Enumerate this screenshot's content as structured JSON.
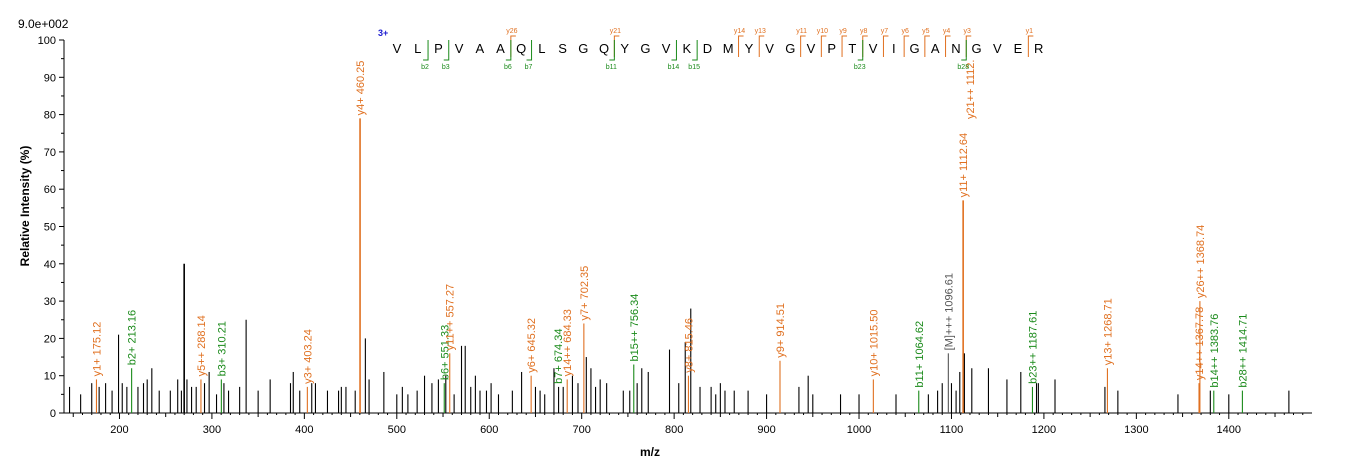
{
  "chart_data": {
    "type": "bar",
    "title": "",
    "intensity_scale_label": "9.0e+002",
    "xlabel": "m/z",
    "ylabel": "Relative   Intensity (%)",
    "xlim": [
      140,
      1490
    ],
    "ylim": [
      0,
      100
    ],
    "x_ticks": [
      200,
      300,
      400,
      500,
      600,
      700,
      800,
      900,
      1000,
      1100,
      1200,
      1300,
      1400
    ],
    "y_ticks": [
      0,
      10,
      20,
      30,
      40,
      50,
      60,
      70,
      80,
      90,
      100
    ],
    "grid": false,
    "colors": {
      "y_ion": "#e07020",
      "b_ion": "#1a8a1a",
      "other": "#000000",
      "precursor": "#555555",
      "charge": "#1a1ad0"
    },
    "peaks": [
      {
        "mz": 146,
        "i": 7
      },
      {
        "mz": 158,
        "i": 5
      },
      {
        "mz": 170,
        "i": 8
      },
      {
        "mz": 175.12,
        "i": 9,
        "ion": "y"
      },
      {
        "mz": 178,
        "i": 7
      },
      {
        "mz": 185,
        "i": 8
      },
      {
        "mz": 192,
        "i": 6
      },
      {
        "mz": 199,
        "i": 21
      },
      {
        "mz": 203,
        "i": 8
      },
      {
        "mz": 208,
        "i": 7
      },
      {
        "mz": 213.16,
        "i": 12,
        "ion": "b"
      },
      {
        "mz": 220,
        "i": 7
      },
      {
        "mz": 226,
        "i": 8
      },
      {
        "mz": 230,
        "i": 9
      },
      {
        "mz": 235,
        "i": 12
      },
      {
        "mz": 243,
        "i": 6
      },
      {
        "mz": 255,
        "i": 6
      },
      {
        "mz": 263,
        "i": 9
      },
      {
        "mz": 267,
        "i": 6
      },
      {
        "mz": 270,
        "i": 40
      },
      {
        "mz": 273,
        "i": 9
      },
      {
        "mz": 278,
        "i": 7
      },
      {
        "mz": 283,
        "i": 7
      },
      {
        "mz": 288.14,
        "i": 9,
        "ion": "y"
      },
      {
        "mz": 292,
        "i": 8
      },
      {
        "mz": 297,
        "i": 11
      },
      {
        "mz": 305,
        "i": 5
      },
      {
        "mz": 310.21,
        "i": 9,
        "ion": "b"
      },
      {
        "mz": 313,
        "i": 8
      },
      {
        "mz": 318,
        "i": 6
      },
      {
        "mz": 330,
        "i": 7
      },
      {
        "mz": 337,
        "i": 25
      },
      {
        "mz": 350,
        "i": 6
      },
      {
        "mz": 363,
        "i": 9
      },
      {
        "mz": 385,
        "i": 8
      },
      {
        "mz": 388,
        "i": 11
      },
      {
        "mz": 395,
        "i": 6
      },
      {
        "mz": 403.24,
        "i": 7,
        "ion": "y"
      },
      {
        "mz": 408,
        "i": 8
      },
      {
        "mz": 412,
        "i": 8
      },
      {
        "mz": 425,
        "i": 6
      },
      {
        "mz": 437,
        "i": 6
      },
      {
        "mz": 440,
        "i": 7
      },
      {
        "mz": 445,
        "i": 7
      },
      {
        "mz": 455,
        "i": 6
      },
      {
        "mz": 460.25,
        "i": 79,
        "ion": "y"
      },
      {
        "mz": 466,
        "i": 20
      },
      {
        "mz": 470,
        "i": 9
      },
      {
        "mz": 486,
        "i": 11
      },
      {
        "mz": 500,
        "i": 5
      },
      {
        "mz": 506,
        "i": 7
      },
      {
        "mz": 512,
        "i": 5
      },
      {
        "mz": 522,
        "i": 6
      },
      {
        "mz": 530,
        "i": 10
      },
      {
        "mz": 538,
        "i": 8
      },
      {
        "mz": 545,
        "i": 9
      },
      {
        "mz": 551.33,
        "i": 8,
        "ion": "b"
      },
      {
        "mz": 553,
        "i": 10
      },
      {
        "mz": 557.27,
        "i": 16,
        "ion": "y"
      },
      {
        "mz": 562,
        "i": 5
      },
      {
        "mz": 570,
        "i": 18
      },
      {
        "mz": 574,
        "i": 18
      },
      {
        "mz": 580,
        "i": 7
      },
      {
        "mz": 585,
        "i": 10
      },
      {
        "mz": 590,
        "i": 6
      },
      {
        "mz": 597,
        "i": 6
      },
      {
        "mz": 602,
        "i": 8
      },
      {
        "mz": 610,
        "i": 5
      },
      {
        "mz": 625,
        "i": 6
      },
      {
        "mz": 635,
        "i": 11
      },
      {
        "mz": 645.32,
        "i": 10,
        "ion": "y"
      },
      {
        "mz": 650,
        "i": 7
      },
      {
        "mz": 655,
        "i": 6
      },
      {
        "mz": 660,
        "i": 5
      },
      {
        "mz": 670,
        "i": 12
      },
      {
        "mz": 675,
        "i": 7
      },
      {
        "mz": 680,
        "i": 7
      },
      {
        "mz": 684.33,
        "i": 9,
        "ion": "y"
      },
      {
        "mz": 690,
        "i": 10
      },
      {
        "mz": 696,
        "i": 8
      },
      {
        "mz": 702.35,
        "i": 24,
        "ion": "y"
      },
      {
        "mz": 705,
        "i": 15
      },
      {
        "mz": 710,
        "i": 12
      },
      {
        "mz": 715,
        "i": 7
      },
      {
        "mz": 720,
        "i": 9
      },
      {
        "mz": 727,
        "i": 8
      },
      {
        "mz": 745,
        "i": 6
      },
      {
        "mz": 752,
        "i": 6
      },
      {
        "mz": 756.34,
        "i": 13,
        "ion": "b"
      },
      {
        "mz": 760,
        "i": 8
      },
      {
        "mz": 765,
        "i": 12
      },
      {
        "mz": 772,
        "i": 11
      },
      {
        "mz": 795,
        "i": 17
      },
      {
        "mz": 805,
        "i": 8
      },
      {
        "mz": 812,
        "i": 19
      },
      {
        "mz": 815.46,
        "i": 10,
        "ion": "y"
      },
      {
        "mz": 818,
        "i": 28
      },
      {
        "mz": 828,
        "i": 7
      },
      {
        "mz": 840,
        "i": 7
      },
      {
        "mz": 845,
        "i": 5
      },
      {
        "mz": 850,
        "i": 8
      },
      {
        "mz": 855,
        "i": 6
      },
      {
        "mz": 865,
        "i": 6
      },
      {
        "mz": 880,
        "i": 6
      },
      {
        "mz": 900,
        "i": 5
      },
      {
        "mz": 914.51,
        "i": 14,
        "ion": "y"
      },
      {
        "mz": 935,
        "i": 7
      },
      {
        "mz": 945,
        "i": 10
      },
      {
        "mz": 950,
        "i": 5
      },
      {
        "mz": 980,
        "i": 5
      },
      {
        "mz": 1000,
        "i": 5
      },
      {
        "mz": 1015.5,
        "i": 9,
        "ion": "y"
      },
      {
        "mz": 1040,
        "i": 5
      },
      {
        "mz": 1064.62,
        "i": 6,
        "ion": "b"
      },
      {
        "mz": 1075,
        "i": 5
      },
      {
        "mz": 1085,
        "i": 6
      },
      {
        "mz": 1090,
        "i": 8
      },
      {
        "mz": 1096.61,
        "i": 16,
        "ion": "p"
      },
      {
        "mz": 1100,
        "i": 8
      },
      {
        "mz": 1105,
        "i": 6
      },
      {
        "mz": 1109,
        "i": 11
      },
      {
        "mz": 1112.64,
        "i": 57,
        "ion": "y"
      },
      {
        "mz": 1114,
        "i": 16
      },
      {
        "mz": 1122,
        "i": 12
      },
      {
        "mz": 1140,
        "i": 12
      },
      {
        "mz": 1160,
        "i": 9
      },
      {
        "mz": 1175,
        "i": 11
      },
      {
        "mz": 1187.61,
        "i": 7,
        "ion": "b"
      },
      {
        "mz": 1192,
        "i": 8
      },
      {
        "mz": 1194,
        "i": 8
      },
      {
        "mz": 1212,
        "i": 9
      },
      {
        "mz": 1266,
        "i": 7
      },
      {
        "mz": 1268.71,
        "i": 12,
        "ion": "y"
      },
      {
        "mz": 1280,
        "i": 6
      },
      {
        "mz": 1345,
        "i": 5
      },
      {
        "mz": 1367.78,
        "i": 8,
        "ion": "y"
      },
      {
        "mz": 1368.74,
        "i": 30,
        "ion": "y"
      },
      {
        "mz": 1380,
        "i": 6
      },
      {
        "mz": 1383.76,
        "i": 6,
        "ion": "b"
      },
      {
        "mz": 1400,
        "i": 5
      },
      {
        "mz": 1414.71,
        "i": 6,
        "ion": "b"
      },
      {
        "mz": 1465,
        "i": 6
      }
    ],
    "annotations": [
      {
        "mz": 175.12,
        "top": 9,
        "text": "y1+ 175.12",
        "ion": "y"
      },
      {
        "mz": 213.16,
        "top": 12,
        "text": "b2+ 213.16",
        "ion": "b"
      },
      {
        "mz": 288.14,
        "top": 9,
        "text": "y5++ 288.14",
        "ion": "y"
      },
      {
        "mz": 310.21,
        "top": 9,
        "text": "b3+ 310.21",
        "ion": "b"
      },
      {
        "mz": 403.24,
        "top": 7,
        "text": "y3+ 403.24",
        "ion": "y"
      },
      {
        "mz": 460.25,
        "top": 79,
        "text": "y4+ 460.25",
        "ion": "y"
      },
      {
        "mz": 551.33,
        "top": 8,
        "text": "b6+ 551.33",
        "ion": "b"
      },
      {
        "mz": 557.27,
        "top": 16,
        "text": "y11++ 557.27",
        "ion": "y"
      },
      {
        "mz": 645.32,
        "top": 10,
        "text": "y6+ 645.32",
        "ion": "y"
      },
      {
        "mz": 674.34,
        "top": 7,
        "text": "b7+ 674.34",
        "ion": "b"
      },
      {
        "mz": 684.33,
        "top": 9,
        "text": "y14++ 684.33",
        "ion": "y"
      },
      {
        "mz": 702.35,
        "top": 24,
        "text": "y7+ 702.35",
        "ion": "y"
      },
      {
        "mz": 756.34,
        "top": 13,
        "text": "b15++ 756.34",
        "ion": "b"
      },
      {
        "mz": 815.46,
        "top": 10,
        "text": "y8+ 815.46",
        "ion": "y"
      },
      {
        "mz": 914.51,
        "top": 14,
        "text": "y9+ 914.51",
        "ion": "y"
      },
      {
        "mz": 1015.5,
        "top": 9,
        "text": "y10+ 1015.50",
        "ion": "y"
      },
      {
        "mz": 1064.62,
        "top": 6,
        "text": "b11+ 1064.62",
        "ion": "b"
      },
      {
        "mz": 1096.61,
        "top": 16,
        "text": "[M]+++ 1096.61",
        "ion": "p"
      },
      {
        "mz": 1112.64,
        "top": 57,
        "text": "y11+ 1112.64",
        "ion": "y"
      },
      {
        "mz": 1120,
        "top": 78,
        "text": "y21++ 1112.",
        "ion": "y"
      },
      {
        "mz": 1187.61,
        "top": 7,
        "text": "b23++ 1187.61",
        "ion": "b"
      },
      {
        "mz": 1268.71,
        "top": 12,
        "text": "y13+ 1268.71",
        "ion": "y"
      },
      {
        "mz": 1367.78,
        "top": 8,
        "text": "y14++ 1367.78",
        "ion": "y"
      },
      {
        "mz": 1368.74,
        "top": 30,
        "text": "y26++ 1368.74",
        "ion": "y"
      },
      {
        "mz": 1383.76,
        "top": 6,
        "text": "b14++ 1383.76",
        "ion": "b"
      },
      {
        "mz": 1414.71,
        "top": 6,
        "text": "b28++ 1414.71",
        "ion": "b"
      }
    ]
  },
  "sequence": {
    "charge": "3+",
    "residues": [
      "V",
      "L",
      "P",
      "V",
      "A",
      "A",
      "Q",
      "L",
      "S",
      "G",
      "Q",
      "Y",
      "G",
      "V",
      "K",
      "D",
      "M",
      "Y",
      "V",
      "G",
      "V",
      "P",
      "T",
      "V",
      "I",
      "G",
      "A",
      "N",
      "G",
      "V",
      "E",
      "R"
    ],
    "y_marks": [
      {
        "after": 6,
        "label": "y26"
      },
      {
        "after": 11,
        "label": "y21"
      },
      {
        "after": 17,
        "label": "y14"
      },
      {
        "after": 18,
        "label": "y13"
      },
      {
        "after": 20,
        "label": "y11"
      },
      {
        "after": 21,
        "label": "y10"
      },
      {
        "after": 22,
        "label": "y9"
      },
      {
        "after": 23,
        "label": "y8"
      },
      {
        "after": 24,
        "label": "y7"
      },
      {
        "after": 25,
        "label": "y6"
      },
      {
        "after": 26,
        "label": "y5"
      },
      {
        "after": 27,
        "label": "y4"
      },
      {
        "after": 28,
        "label": "y3"
      },
      {
        "after": 31,
        "label": "y1"
      }
    ],
    "b_marks": [
      {
        "after": 2,
        "label": "b2"
      },
      {
        "after": 3,
        "label": "b3"
      },
      {
        "after": 6,
        "label": "b6"
      },
      {
        "after": 7,
        "label": "b7"
      },
      {
        "after": 11,
        "label": "b11"
      },
      {
        "after": 14,
        "label": "b14"
      },
      {
        "after": 15,
        "label": "b15"
      },
      {
        "after": 23,
        "label": "b23"
      },
      {
        "after": 28,
        "label": "b28"
      }
    ]
  }
}
